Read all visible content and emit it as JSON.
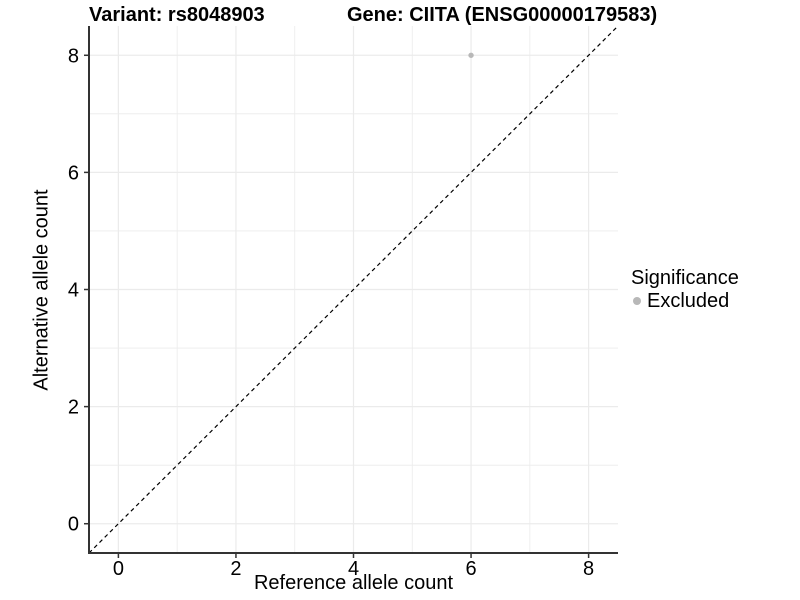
{
  "chart_data": {
    "type": "scatter",
    "title_left": "Variant: rs8048903",
    "title_right": "Gene: CIITA (ENSG00000179583)",
    "xlabel": "Reference allele count",
    "ylabel": "Alternative allele count",
    "xlim": [
      -0.5,
      8.5
    ],
    "ylim": [
      -0.5,
      8.5
    ],
    "x_ticks": [
      0,
      2,
      4,
      6,
      8
    ],
    "y_ticks": [
      0,
      2,
      4,
      6,
      8
    ],
    "minor_grid_step": 1,
    "grid": "on",
    "colors": {
      "grid": "#ebebeb",
      "axis": "#333333",
      "tick_text": "#000000",
      "reference_line": "#000000",
      "excluded_point": "#b8b8b8"
    },
    "series": [
      {
        "name": "Excluded",
        "color": "#b8b8b8",
        "point_radius": 2.7,
        "points": [
          [
            6,
            8
          ]
        ]
      }
    ],
    "reference_line": {
      "kind": "identity y=x",
      "style": "dashed"
    },
    "legend": {
      "title": "Significance",
      "position": "right",
      "entries": [
        {
          "label": "Excluded",
          "color": "#b8b8b8"
        }
      ]
    }
  }
}
